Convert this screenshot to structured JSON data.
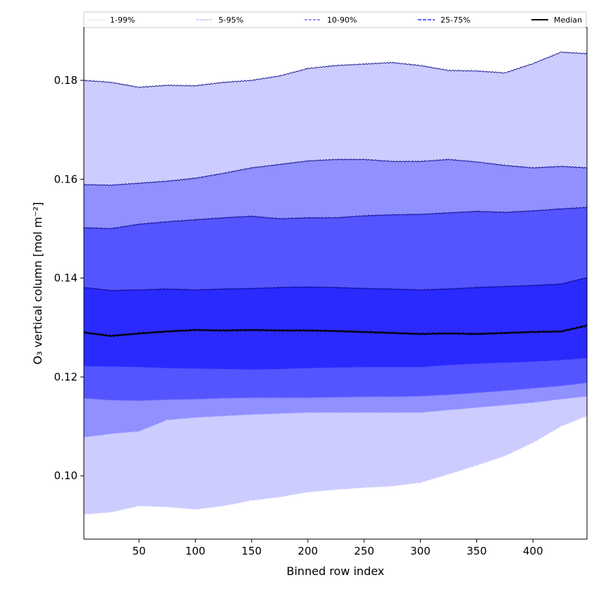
{
  "chart_data": {
    "type": "area",
    "title": "",
    "xlabel": "Binned row index",
    "ylabel": "O₃ vertical column [mol m⁻²]",
    "xlim": [
      1,
      448
    ],
    "ylim": [
      0.0872,
      0.1907
    ],
    "xticks": [
      50,
      100,
      150,
      200,
      250,
      300,
      350,
      400
    ],
    "yticks": [
      0.1,
      0.12,
      0.14,
      0.16,
      0.18
    ],
    "ytick_labels": [
      "0.10",
      "0.12",
      "0.14",
      "0.16",
      "0.18"
    ],
    "legend_position": "top (above plot, full width)",
    "legend": [
      "1-99%",
      "5-95%",
      "10-90%",
      "25-75%",
      "Median"
    ],
    "colors": {
      "band_1_99": "#ccccff",
      "band_5_95": "#9090ff",
      "band_10_90": "#5555ff",
      "band_25_75": "#2a2aff",
      "edge": "#000080",
      "median": "#000000"
    },
    "x": [
      1,
      25,
      50,
      75,
      100,
      125,
      150,
      175,
      200,
      225,
      250,
      275,
      300,
      325,
      350,
      375,
      400,
      425,
      448
    ],
    "series": [
      {
        "name": "p1",
        "values": [
          0.0922,
          0.0926,
          0.0939,
          0.0937,
          0.0932,
          0.0939,
          0.095,
          0.0957,
          0.0967,
          0.0972,
          0.0976,
          0.0979,
          0.0986,
          0.1003,
          0.1021,
          0.104,
          0.1067,
          0.11,
          0.1121
        ]
      },
      {
        "name": "p5",
        "values": [
          0.1078,
          0.1085,
          0.109,
          0.1113,
          0.1118,
          0.1121,
          0.1124,
          0.1126,
          0.1128,
          0.1128,
          0.1128,
          0.1128,
          0.1128,
          0.1133,
          0.1138,
          0.1143,
          0.1148,
          0.1155,
          0.1161
        ]
      },
      {
        "name": "p10",
        "values": [
          0.1157,
          0.1153,
          0.1152,
          0.1154,
          0.1155,
          0.1157,
          0.1158,
          0.1158,
          0.1158,
          0.1159,
          0.116,
          0.116,
          0.1161,
          0.1164,
          0.1168,
          0.1172,
          0.1177,
          0.1182,
          0.1188
        ]
      },
      {
        "name": "p25",
        "values": [
          0.1222,
          0.1221,
          0.122,
          0.1218,
          0.1217,
          0.1216,
          0.1215,
          0.1216,
          0.1218,
          0.1219,
          0.122,
          0.122,
          0.122,
          0.1224,
          0.1227,
          0.1229,
          0.1231,
          0.1234,
          0.1238
        ]
      },
      {
        "name": "median",
        "values": [
          0.129,
          0.1283,
          0.1288,
          0.1292,
          0.1295,
          0.1294,
          0.1295,
          0.1294,
          0.1294,
          0.1293,
          0.1291,
          0.1289,
          0.1287,
          0.1288,
          0.1287,
          0.1289,
          0.1291,
          0.1292,
          0.1304
        ]
      },
      {
        "name": "p75",
        "values": [
          0.1381,
          0.1375,
          0.1376,
          0.1378,
          0.1376,
          0.1378,
          0.1379,
          0.1381,
          0.1382,
          0.1381,
          0.1379,
          0.1378,
          0.1376,
          0.1378,
          0.1381,
          0.1383,
          0.1385,
          0.1388,
          0.1401
        ]
      },
      {
        "name": "p90",
        "values": [
          0.1502,
          0.15,
          0.1509,
          0.1514,
          0.1518,
          0.1522,
          0.1525,
          0.152,
          0.1522,
          0.1522,
          0.1526,
          0.1528,
          0.1529,
          0.1532,
          0.1535,
          0.1533,
          0.1536,
          0.154,
          0.1543
        ]
      },
      {
        "name": "p95",
        "values": [
          0.1589,
          0.1588,
          0.1592,
          0.1596,
          0.1602,
          0.1612,
          0.1623,
          0.163,
          0.1637,
          0.164,
          0.164,
          0.1636,
          0.1636,
          0.164,
          0.1635,
          0.1628,
          0.1623,
          0.1626,
          0.1623
        ]
      },
      {
        "name": "p99",
        "values": [
          0.18,
          0.1796,
          0.1786,
          0.179,
          0.1789,
          0.1796,
          0.18,
          0.1809,
          0.1824,
          0.183,
          0.1833,
          0.1836,
          0.183,
          0.182,
          0.1819,
          0.1815,
          0.1834,
          0.1857,
          0.1854
        ]
      }
    ]
  }
}
